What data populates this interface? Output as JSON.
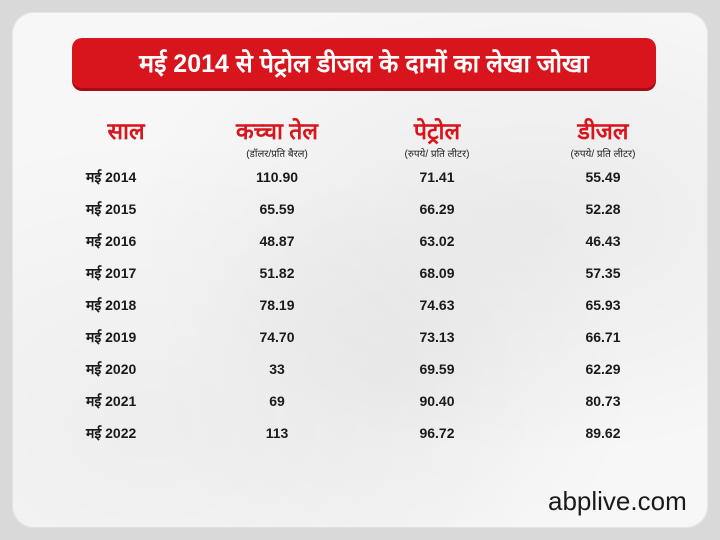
{
  "title": "मई 2014 से पेट्रोल डीजल के दामों का लेखा जोखा",
  "columns": [
    {
      "label": "साल",
      "sub": ""
    },
    {
      "label": "कच्चा तेल",
      "sub": "(डॉलर/प्रति बैरल)"
    },
    {
      "label": "पेट्रोल",
      "sub": "(रुपये/ प्रति लीटर)"
    },
    {
      "label": "डीजल",
      "sub": "(रुपये/ प्रति लीटर)"
    }
  ],
  "rows": [
    [
      "मई 2014",
      "110.90",
      "71.41",
      "55.49"
    ],
    [
      "मई 2015",
      "65.59",
      "66.29",
      "52.28"
    ],
    [
      "मई 2016",
      "48.87",
      "63.02",
      "46.43"
    ],
    [
      "मई 2017",
      "51.82",
      "68.09",
      "57.35"
    ],
    [
      "मई 2018",
      "78.19",
      "74.63",
      "65.93"
    ],
    [
      "मई 2019",
      "74.70",
      "73.13",
      "66.71"
    ],
    [
      "मई 2020",
      "33",
      "69.59",
      "62.29"
    ],
    [
      "मई 2021",
      "69",
      "90.40",
      "80.73"
    ],
    [
      "मई 2022",
      "113",
      "96.72",
      "89.62"
    ]
  ],
  "brand": "abplive.com",
  "colors": {
    "accent": "#d8141c",
    "text": "#1a1a1a",
    "background": "#f7f7f7"
  }
}
